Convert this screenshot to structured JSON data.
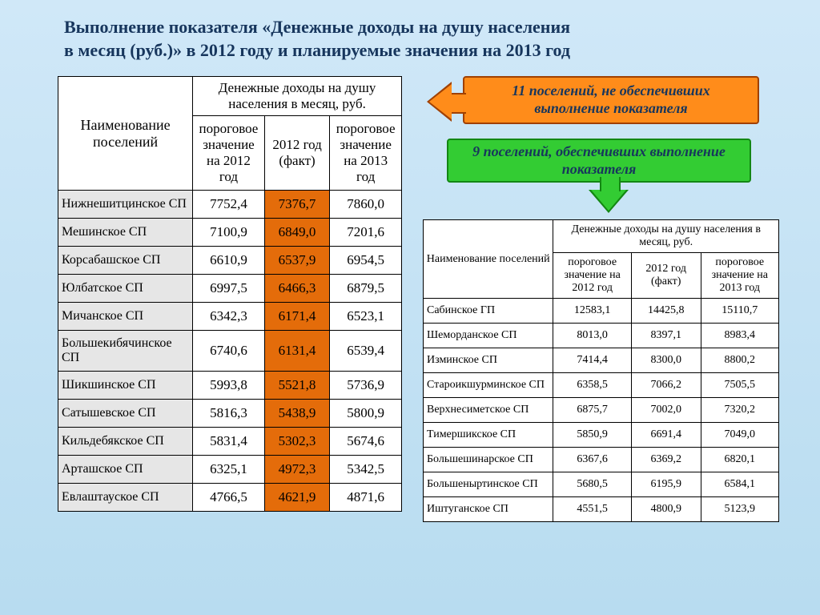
{
  "title_l1": "Выполнение показателя «Денежные доходы на душу населения",
  "title_l2": "в месяц (руб.)» в 2012 году и планируемые значения на 2013 год",
  "hdr_name": "Наименование поселений",
  "hdr_group": "Денежные доходы на душу населения в месяц, руб.",
  "hdr_c1": "пороговое значение на 2012 год",
  "hdr_c2": "2012 год (факт)",
  "hdr_c3": "пороговое значение на 2013 год",
  "callout_orange": "11 поселений, не обеспечивших выполнение показателя",
  "callout_green": "9 поселений, обеспечивших выполнение показателя",
  "colors": {
    "highlight": "#e46c0a",
    "row_alt": "#e6e6e6",
    "orange_fill": "#ff8c1a",
    "orange_border": "#a04000",
    "green_fill": "#33cc33",
    "green_border": "#138713",
    "title_color": "#17365d",
    "bg_top": "#d0e8f8",
    "bg_bottom": "#b8dcf0"
  },
  "table1": [
    {
      "name": "Нижнешитцинское СП",
      "c1": "7752,4",
      "c2": "7376,7",
      "c3": "7860,0"
    },
    {
      "name": "Мешинское СП",
      "c1": "7100,9",
      "c2": "6849,0",
      "c3": "7201,6"
    },
    {
      "name": "Корсабашское СП",
      "c1": "6610,9",
      "c2": "6537,9",
      "c3": "6954,5"
    },
    {
      "name": "Юлбатское СП",
      "c1": "6997,5",
      "c2": "6466,3",
      "c3": "6879,5"
    },
    {
      "name": "Мичанское СП",
      "c1": "6342,3",
      "c2": "6171,4",
      "c3": "6523,1"
    },
    {
      "name": "Большекибячинское СП",
      "c1": "6740,6",
      "c2": "6131,4",
      "c3": "6539,4"
    },
    {
      "name": "Шикшинское СП",
      "c1": "5993,8",
      "c2": "5521,8",
      "c3": "5736,9"
    },
    {
      "name": "Сатышевское СП",
      "c1": "5816,3",
      "c2": "5438,9",
      "c3": "5800,9"
    },
    {
      "name": "Кильдебякское СП",
      "c1": "5831,4",
      "c2": "5302,3",
      "c3": "5674,6"
    },
    {
      "name": "Арташское СП",
      "c1": "6325,1",
      "c2": "4972,3",
      "c3": "5342,5"
    },
    {
      "name": "Евлаштауское СП",
      "c1": "4766,5",
      "c2": "4621,9",
      "c3": "4871,6"
    }
  ],
  "table2": [
    {
      "name": "Сабинское ГП",
      "c1": "12583,1",
      "c2": "14425,8",
      "c3": "15110,7"
    },
    {
      "name": "Шеморданское СП",
      "c1": "8013,0",
      "c2": "8397,1",
      "c3": "8983,4"
    },
    {
      "name": "Изминское СП",
      "c1": "7414,4",
      "c2": "8300,0",
      "c3": "8800,2"
    },
    {
      "name": "Староикшурминское СП",
      "c1": "6358,5",
      "c2": "7066,2",
      "c3": "7505,5"
    },
    {
      "name": "Верхнесиметское СП",
      "c1": "6875,7",
      "c2": "7002,0",
      "c3": "7320,2"
    },
    {
      "name": "Тимершикское СП",
      "c1": "5850,9",
      "c2": "6691,4",
      "c3": "7049,0"
    },
    {
      "name": "Большешинарское СП",
      "c1": "6367,6",
      "c2": "6369,2",
      "c3": "6820,1"
    },
    {
      "name": "Большеныртинское СП",
      "c1": "5680,5",
      "c2": "6195,9",
      "c3": "6584,1"
    },
    {
      "name": "Иштуганское СП",
      "c1": "4551,5",
      "c2": "4800,9",
      "c3": "5123,9"
    }
  ]
}
